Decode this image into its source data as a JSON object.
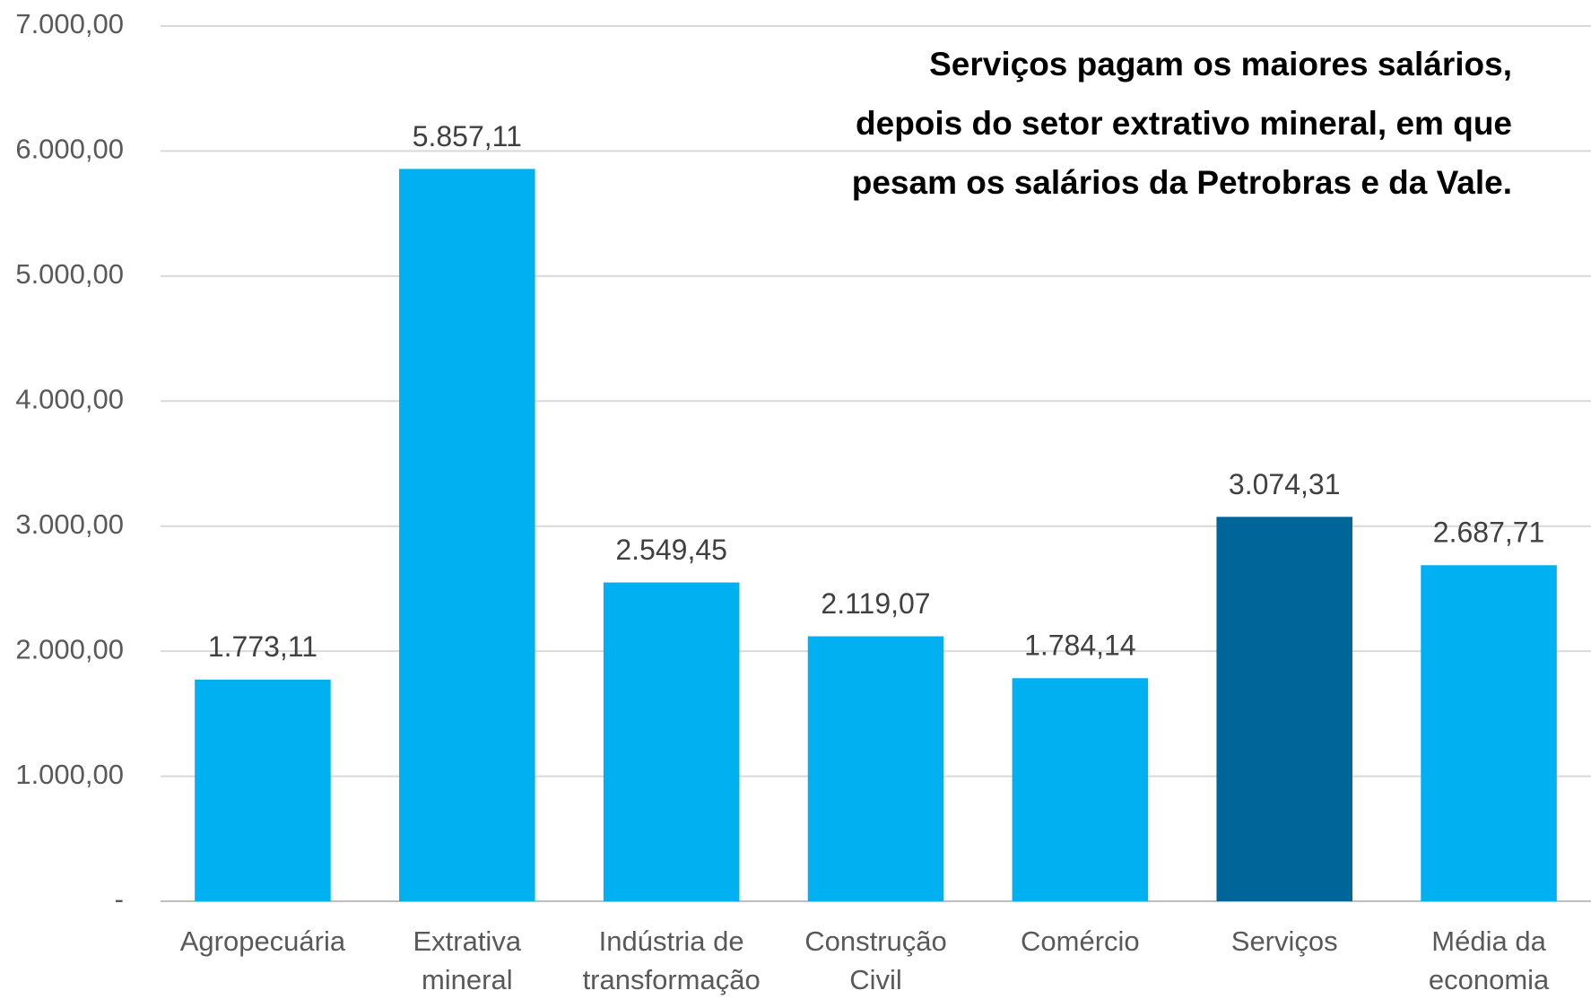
{
  "chart_data": {
    "type": "bar",
    "title": [
      "Serviços pagam os maiores salários,",
      "depois do setor extrativo mineral, em que",
      "pesam os salários da Petrobras e da Vale."
    ],
    "categories": [
      [
        "Agropecuária"
      ],
      [
        "Extrativa",
        "mineral"
      ],
      [
        "Indústria de",
        "transformação"
      ],
      [
        "Construção",
        "Civil"
      ],
      [
        "Comércio"
      ],
      [
        "Serviços"
      ],
      [
        "Média da",
        "economia"
      ]
    ],
    "values": [
      1773.11,
      5857.11,
      2549.45,
      2119.07,
      1784.14,
      3074.31,
      2687.71
    ],
    "value_labels": [
      "1.773,11",
      "5.857,11",
      "2.549,45",
      "2.119,07",
      "1.784,14",
      "3.074,31",
      "2.687,71"
    ],
    "colors": [
      "#00b0f0",
      "#00b0f0",
      "#00b0f0",
      "#00b0f0",
      "#00b0f0",
      "#006699",
      "#00b0f0"
    ],
    "ylim": [
      0,
      7000
    ],
    "yticks": [
      {
        "value": 0,
        "label": "-"
      },
      {
        "value": 1000,
        "label": "1.000,00"
      },
      {
        "value": 2000,
        "label": "2.000,00"
      },
      {
        "value": 3000,
        "label": "3.000,00"
      },
      {
        "value": 4000,
        "label": "4.000,00"
      },
      {
        "value": 5000,
        "label": "5.000,00"
      },
      {
        "value": 6000,
        "label": "6.000,00"
      },
      {
        "value": 7000,
        "label": "7.000,00"
      }
    ],
    "grid": true
  }
}
